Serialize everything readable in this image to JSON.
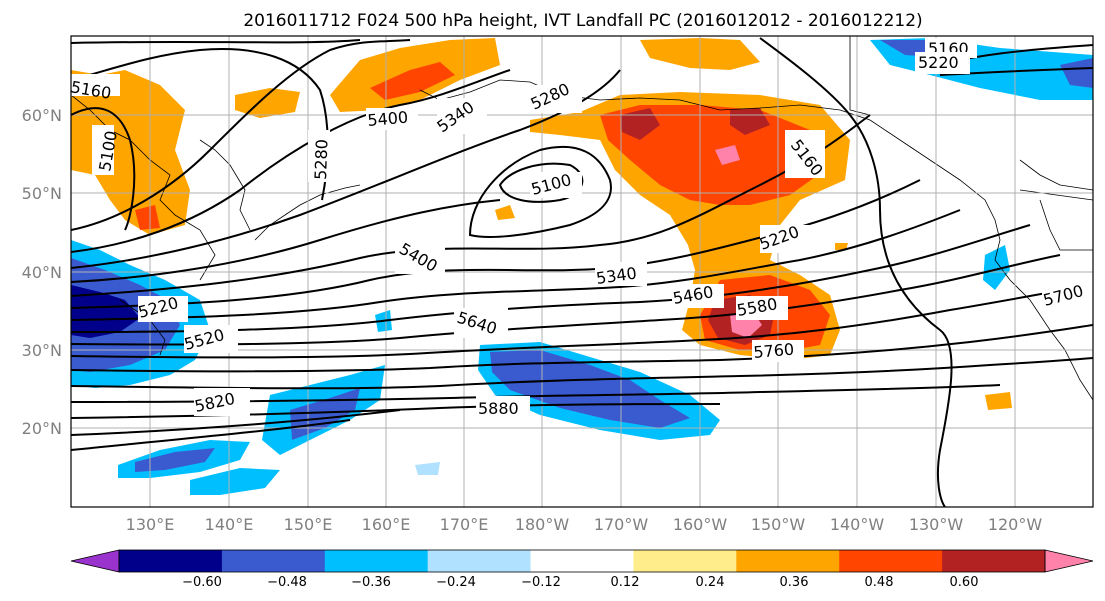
{
  "title": "2016011712 F024 500 hPa height, IVT Landfall PC (2016012012 - 2016012212)",
  "lat_labels": [
    "60°N",
    "50°N",
    "40°N",
    "30°N",
    "20°N"
  ],
  "lon_labels": [
    "130°E",
    "140°E",
    "150°E",
    "160°E",
    "170°E",
    "180°W",
    "170°W",
    "160°W",
    "150°W",
    "140°W",
    "130°W",
    "120°W"
  ],
  "colorbar": {
    "ticks": [
      "−0.60",
      "−0.48",
      "−0.36",
      "−0.24",
      "−0.12",
      "0.12",
      "0.24",
      "0.36",
      "0.48",
      "0.60"
    ],
    "colors": [
      "#9a32cd",
      "#00008b",
      "#3a5bd0",
      "#00bfff",
      "#b0e2ff",
      "#ffffff",
      "#ffec8b",
      "#ffa500",
      "#ff4500",
      "#b22222",
      "#ff82ab"
    ]
  },
  "contour_labels": [
    "5160",
    "5100",
    "5280",
    "5400",
    "5340",
    "5280",
    "5160",
    "5220",
    "5100",
    "5160",
    "5220",
    "5400",
    "5340",
    "5460",
    "5580",
    "5760",
    "5640",
    "5520",
    "5220",
    "5820",
    "5880",
    "5700"
  ]
}
